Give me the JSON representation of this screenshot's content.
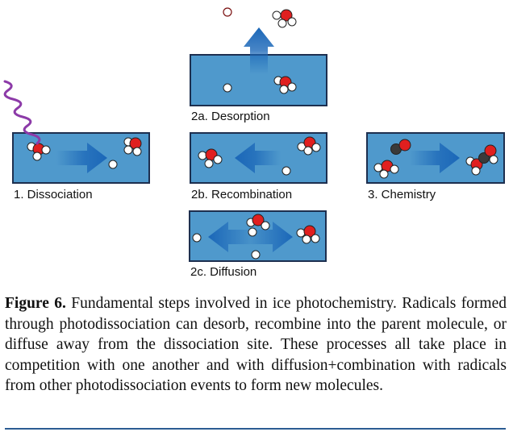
{
  "panels": {
    "dissociation": "1. Dissociation",
    "desorption": "2a. Desorption",
    "recombination": "2b. Recombination",
    "chemistry": "3. Chemistry",
    "diffusion": "2c. Diffusion"
  },
  "caption": {
    "label": "Figure 6.",
    "text": "Fundamental steps involved in ice photochemistry. Radicals formed through photodissociation can desorb, recombine into the parent molecule, or diffuse away from the dissociation site. These processes all take place in competition with one another and with diffusion+combination with radicals from other photodissociation events to form new molecules."
  },
  "colors": {
    "ice": "#4f99cc",
    "ice_border": "#1d2f4f",
    "arrow": "#1b67b8",
    "oxygen": "#e01f1f",
    "hydrogen": "#ffffff",
    "carbon": "#3a3a3a",
    "photon": "#8c3aa8",
    "rule": "#2b5c93"
  }
}
